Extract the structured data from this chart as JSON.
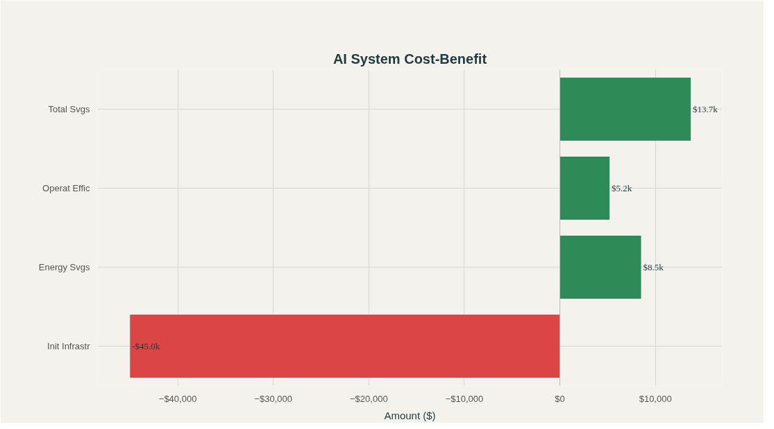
{
  "chart_data": {
    "type": "bar",
    "orientation": "horizontal",
    "title": "AI System Cost-Benefit",
    "xlabel": "Amount ($)",
    "categories": [
      "Total Svgs",
      "Operat Effic",
      "Energy Svgs",
      "Init Infrastr"
    ],
    "values": [
      13700,
      5200,
      8500,
      -45000
    ],
    "colors": [
      "#2e8b57",
      "#2e8b57",
      "#2e8b57",
      "#db4545"
    ],
    "value_labels": [
      "$13.7k",
      "$5.2k",
      "$8.5k",
      "-$45.0k"
    ],
    "xlim": [
      -48400,
      17000
    ],
    "xticks": [
      {
        "value": -40000,
        "label": "−$40,000"
      },
      {
        "value": -30000,
        "label": "−$30,000"
      },
      {
        "value": -20000,
        "label": "−$20,000"
      },
      {
        "value": -10000,
        "label": "−$10,000"
      },
      {
        "value": 0,
        "label": "$0"
      },
      {
        "value": 10000,
        "label": "$10,000"
      }
    ],
    "grid": true
  }
}
